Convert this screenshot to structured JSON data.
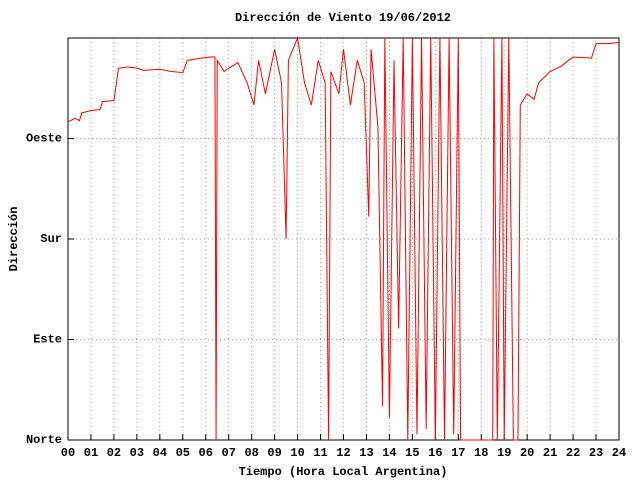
{
  "chart_data": {
    "type": "line",
    "title": "Dirección de Viento 19/06/2012",
    "xlabel": "Tiempo (Hora Local Argentina)",
    "ylabel": "Dirección",
    "color": "#ff0000",
    "grid": true,
    "xlim": [
      0,
      24
    ],
    "ylim": [
      0,
      360
    ],
    "xticks": [
      {
        "value": 0,
        "label": "00"
      },
      {
        "value": 1,
        "label": "01"
      },
      {
        "value": 2,
        "label": "02"
      },
      {
        "value": 3,
        "label": "03"
      },
      {
        "value": 4,
        "label": "04"
      },
      {
        "value": 5,
        "label": "05"
      },
      {
        "value": 6,
        "label": "06"
      },
      {
        "value": 7,
        "label": "07"
      },
      {
        "value": 8,
        "label": "08"
      },
      {
        "value": 9,
        "label": "09"
      },
      10,
      11,
      12,
      13,
      14,
      15,
      16,
      17,
      18,
      19,
      20,
      21,
      22,
      23,
      24
    ],
    "yticks": [
      {
        "value": 0,
        "label": "Norte"
      },
      {
        "value": 90,
        "label": "Este"
      },
      {
        "value": 180,
        "label": "Sur"
      },
      {
        "value": 270,
        "label": "Oeste"
      }
    ],
    "x": [
      0,
      0.3,
      0.5,
      0.6,
      1.0,
      1.4,
      1.5,
      2.0,
      2.2,
      2.6,
      3.0,
      3.3,
      4.0,
      4.5,
      5.0,
      5.2,
      5.8,
      6.2,
      6.4,
      6.45,
      6.5,
      6.8,
      7.0,
      7.4,
      7.8,
      8.1,
      8.3,
      8.6,
      8.8,
      9.0,
      9.3,
      9.5,
      9.6,
      10.0,
      10.3,
      10.6,
      10.9,
      11.2,
      11.35,
      11.45,
      11.8,
      12.0,
      12.3,
      12.6,
      12.9,
      13.1,
      13.2,
      13.5,
      13.7,
      13.8,
      14.0,
      14.2,
      14.4,
      14.6,
      14.8,
      15.0,
      15.2,
      15.4,
      15.6,
      15.8,
      16.0,
      16.2,
      16.4,
      16.6,
      16.8,
      17.0,
      17.1,
      18.5,
      18.55,
      18.7,
      18.9,
      19.0,
      19.2,
      19.4,
      19.6,
      19.7,
      20.0,
      20.3,
      20.5,
      21.0,
      21.5,
      21.8,
      22.0,
      22.8,
      23.0,
      23.5,
      24.0
    ],
    "values": [
      285,
      288,
      286,
      293,
      295,
      296,
      303,
      304,
      333,
      334,
      333,
      331,
      332,
      330,
      329,
      340,
      342,
      343,
      343,
      0,
      340,
      330,
      333,
      338,
      320,
      300,
      340,
      310,
      330,
      350,
      320,
      180,
      340,
      360,
      320,
      300,
      340,
      320,
      0,
      330,
      310,
      350,
      300,
      340,
      320,
      200,
      350,
      280,
      30,
      360,
      20,
      340,
      100,
      360,
      0,
      360,
      5,
      360,
      10,
      360,
      0,
      360,
      0,
      360,
      5,
      360,
      0,
      0,
      360,
      0,
      360,
      0,
      360,
      0,
      0,
      300,
      310,
      305,
      320,
      330,
      335,
      340,
      343,
      342,
      355,
      355,
      356
    ]
  }
}
